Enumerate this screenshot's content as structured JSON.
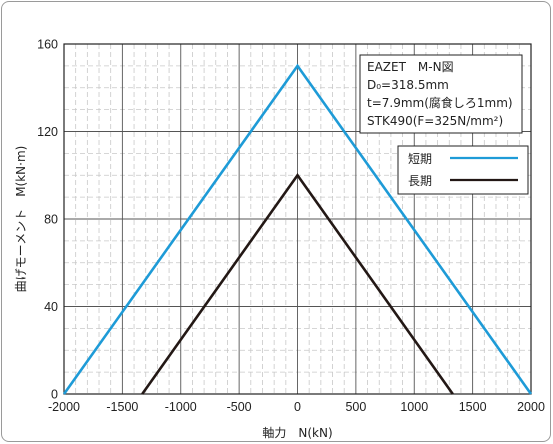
{
  "chart_data": {
    "type": "line",
    "xlabel": "軸力　N(kN)",
    "ylabel": "曲げモーメント　M(kN·m)",
    "xlim": [
      -2000,
      2000
    ],
    "ylim": [
      0,
      160
    ],
    "xticks": [
      -2000,
      -1500,
      -1000,
      -500,
      0,
      500,
      1000,
      1500,
      2000
    ],
    "yticks": [
      0,
      40,
      80,
      120,
      160
    ],
    "xtick_labels": [
      "-2000",
      "-1500",
      "-1000",
      "-500",
      "0",
      "500",
      "1000",
      "1500",
      "2000"
    ],
    "ytick_labels": [
      "0",
      "40",
      "80",
      "120",
      "160"
    ],
    "grid": true,
    "legend_position": "top-right",
    "annotation": {
      "lines": [
        "EAZET　M-N図",
        "D₀=318.5mm",
        "t=7.9mm(腐食しろ1mm)",
        "STK490(F=325N/mm²)"
      ]
    },
    "series": [
      {
        "name": "短期",
        "color": "#1e9bd7",
        "x": [
          -2000,
          0,
          2000
        ],
        "y": [
          0,
          150,
          0
        ]
      },
      {
        "name": "長期",
        "color": "#231815",
        "x": [
          -1330,
          0,
          1330
        ],
        "y": [
          0,
          100,
          0
        ]
      }
    ]
  }
}
